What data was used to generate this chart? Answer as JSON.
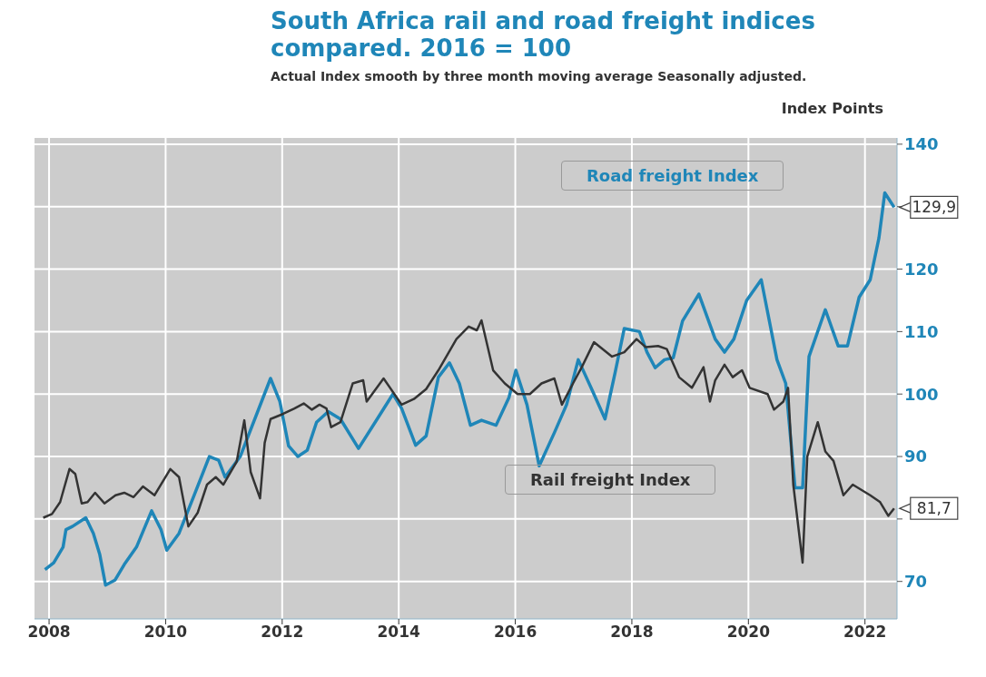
{
  "chart_data": {
    "type": "line",
    "title": "South Africa rail and road freight indices compared. 2016 = 100",
    "subtitle": "Actual Index smooth by three month moving average Seasonally adjusted.",
    "ylabel": "Index Points",
    "xlim": [
      2007.75,
      2022.55
    ],
    "xticks": [
      2008,
      2010,
      2012,
      2014,
      2016,
      2018,
      2020,
      2022
    ],
    "ylim": [
      64,
      141
    ],
    "yticks": [
      70,
      {
        "value": 80,
        "label": null
      },
      90,
      100,
      110,
      120,
      {
        "value": 130,
        "label": null
      },
      140
    ],
    "grid": true,
    "legend": false,
    "marker": "none",
    "line_style": "solid",
    "series": [
      {
        "name": "Road freight Index",
        "color": "#1f86b8",
        "x": [
          2007.93,
          2008.08,
          2008.24,
          2008.29,
          2008.4,
          2008.63,
          2008.76,
          2008.87,
          2008.97,
          2009.13,
          2009.29,
          2009.5,
          2009.76,
          2009.92,
          2010.02,
          2010.23,
          2010.49,
          2010.75,
          2010.91,
          2011.02,
          2011.28,
          2011.8,
          2011.96,
          2012.11,
          2012.27,
          2012.43,
          2012.59,
          2012.79,
          2013.0,
          2013.31,
          2013.63,
          2013.9,
          2014.05,
          2014.29,
          2014.47,
          2014.68,
          2014.87,
          2015.04,
          2015.23,
          2015.42,
          2015.67,
          2015.89,
          2016.01,
          2016.2,
          2016.41,
          2016.67,
          2016.88,
          2017.08,
          2017.3,
          2017.54,
          2017.71,
          2017.87,
          2018.13,
          2018.26,
          2018.4,
          2018.56,
          2018.71,
          2018.87,
          2019.15,
          2019.43,
          2019.59,
          2019.75,
          2019.97,
          2020.22,
          2020.49,
          2020.64,
          2020.8,
          2020.93,
          2021.04,
          2021.32,
          2021.54,
          2021.7,
          2021.9,
          2022.09,
          2022.24,
          2022.34,
          2022.5
        ],
        "values": [
          71.9,
          73,
          75.5,
          78.3,
          78.8,
          80.2,
          77.7,
          74.3,
          69.4,
          70.2,
          72.7,
          75.5,
          81.3,
          78.3,
          75,
          77.7,
          83.8,
          90,
          89.4,
          86.7,
          90,
          102.5,
          98.8,
          91.7,
          90,
          91,
          95.5,
          97.2,
          96,
          91.3,
          96,
          100,
          97.7,
          91.8,
          93.3,
          102.7,
          105,
          101.7,
          95,
          95.8,
          95,
          99.4,
          103.8,
          98.3,
          88.5,
          93.8,
          98.3,
          105.5,
          101,
          96,
          103.3,
          110.5,
          110,
          106.7,
          104.2,
          105.5,
          105.8,
          111.7,
          116,
          108.8,
          106.7,
          108.8,
          115,
          118.3,
          105.5,
          101.7,
          85,
          85,
          106,
          113.5,
          107.7,
          107.7,
          115.5,
          118.3,
          125,
          132.2,
          129.9
        ],
        "value_labels": [
          null,
          null,
          null,
          null,
          null,
          null,
          null,
          null,
          null,
          null,
          null,
          null,
          null,
          null,
          null,
          null,
          null,
          null,
          null,
          null,
          null,
          null,
          null,
          null,
          null,
          null,
          null,
          null,
          null,
          null,
          null,
          null,
          null,
          null,
          null,
          null,
          null,
          null,
          null,
          null,
          null,
          null,
          null,
          null,
          null,
          null,
          null,
          null,
          null,
          null,
          null,
          null,
          null,
          null,
          null,
          null,
          null,
          null,
          null,
          null,
          null,
          null,
          null,
          null,
          null,
          null,
          null,
          null,
          null,
          null,
          null,
          null,
          null,
          null,
          null,
          null,
          "129,9"
        ]
      },
      {
        "name": "Rail freight Index",
        "color": "#333333",
        "x": [
          2007.9,
          2008.05,
          2008.19,
          2008.35,
          2008.45,
          2008.56,
          2008.66,
          2008.79,
          2008.95,
          2009.14,
          2009.29,
          2009.45,
          2009.61,
          2009.81,
          2010.08,
          2010.23,
          2010.39,
          2010.55,
          2010.71,
          2010.86,
          2010.99,
          2011.22,
          2011.35,
          2011.46,
          2011.62,
          2011.7,
          2011.8,
          2012.01,
          2012.21,
          2012.37,
          2012.51,
          2012.64,
          2012.76,
          2012.84,
          2013.0,
          2013.21,
          2013.39,
          2013.45,
          2013.74,
          2014.05,
          2014.26,
          2014.47,
          2014.68,
          2014.99,
          2015.2,
          2015.34,
          2015.42,
          2015.62,
          2015.82,
          2016.04,
          2016.25,
          2016.45,
          2016.67,
          2016.8,
          2016.99,
          2017.14,
          2017.35,
          2017.66,
          2017.87,
          2018.08,
          2018.24,
          2018.45,
          2018.6,
          2018.81,
          2019.03,
          2019.23,
          2019.34,
          2019.43,
          2019.59,
          2019.73,
          2019.89,
          2020.02,
          2020.33,
          2020.44,
          2020.6,
          2020.68,
          2020.77,
          2020.93,
          2021.01,
          2021.19,
          2021.32,
          2021.46,
          2021.63,
          2021.79,
          2022.09,
          2022.26,
          2022.4,
          2022.5
        ],
        "values": [
          80.2,
          80.8,
          82.7,
          88,
          87.2,
          82.5,
          82.7,
          84.2,
          82.5,
          83.8,
          84.2,
          83.5,
          85.2,
          83.8,
          88,
          86.7,
          78.8,
          81,
          85.5,
          86.7,
          85.5,
          89.2,
          95.8,
          87.5,
          83.3,
          92.2,
          96,
          96.8,
          97.7,
          98.5,
          97.5,
          98.3,
          97.7,
          94.7,
          95.5,
          101.7,
          102.2,
          98.8,
          102.5,
          98.3,
          99.2,
          100.8,
          103.8,
          108.8,
          110.8,
          110.2,
          111.8,
          103.8,
          101.7,
          100,
          100,
          101.7,
          102.5,
          98.3,
          101.7,
          104.3,
          108.3,
          106,
          106.7,
          108.8,
          107.5,
          107.7,
          107.2,
          102.7,
          101,
          104.3,
          98.8,
          102.2,
          104.7,
          102.7,
          103.8,
          101,
          100,
          97.5,
          98.8,
          101,
          85.5,
          73,
          90,
          95.5,
          90.8,
          89.3,
          83.8,
          85.5,
          83.8,
          82.7,
          80.5,
          81.7
        ],
        "value_labels": [
          null,
          null,
          null,
          null,
          null,
          null,
          null,
          null,
          null,
          null,
          null,
          null,
          null,
          null,
          null,
          null,
          null,
          null,
          null,
          null,
          null,
          null,
          null,
          null,
          null,
          null,
          null,
          null,
          null,
          null,
          null,
          null,
          null,
          null,
          null,
          null,
          null,
          null,
          null,
          null,
          null,
          null,
          null,
          null,
          null,
          null,
          null,
          null,
          null,
          null,
          null,
          null,
          null,
          null,
          null,
          null,
          null,
          null,
          null,
          null,
          null,
          null,
          null,
          null,
          null,
          null,
          null,
          null,
          null,
          null,
          null,
          null,
          null,
          null,
          null,
          null,
          null,
          null,
          null,
          null,
          null,
          null,
          null,
          null,
          null,
          null,
          null,
          "81,7"
        ]
      }
    ]
  }
}
